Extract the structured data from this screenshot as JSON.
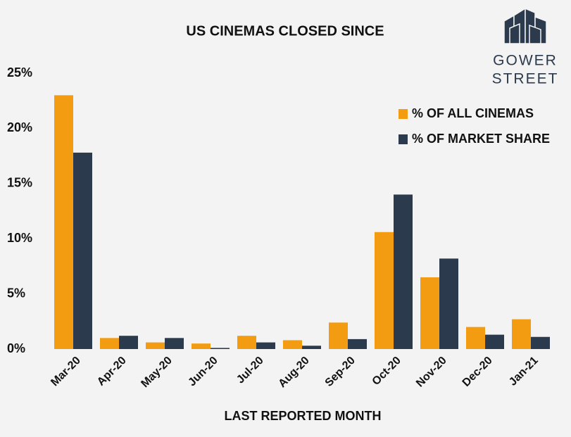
{
  "chart_data": {
    "type": "grouped_bar",
    "title": "US CINEMAS CLOSED SINCE",
    "x_label": "LAST REPORTED MONTH",
    "categories": [
      "Mar-20",
      "Apr-20",
      "May-20",
      "Jun-20",
      "Jul-20",
      "Aug-20",
      "Sep-20",
      "Oct-20",
      "Nov-20",
      "Dec-20",
      "Jan-21"
    ],
    "series": [
      {
        "name": "% OF ALL CINEMAS",
        "color": "#f39c12",
        "values": [
          23.0,
          1.0,
          0.6,
          0.5,
          1.2,
          0.8,
          2.4,
          10.6,
          6.5,
          2.0,
          2.7
        ]
      },
      {
        "name": "% OF MARKET SHARE",
        "color": "#2c3a4d",
        "values": [
          17.8,
          1.2,
          1.0,
          0.1,
          0.6,
          0.3,
          0.9,
          14.0,
          8.2,
          1.3,
          1.1
        ]
      }
    ],
    "ylim": [
      0,
      25
    ],
    "yticks": [
      {
        "value": 0,
        "label": "0%"
      },
      {
        "value": 5,
        "label": "5%"
      },
      {
        "value": 10,
        "label": "10%"
      },
      {
        "value": 15,
        "label": "15%"
      },
      {
        "value": 20,
        "label": "20%"
      },
      {
        "value": 25,
        "label": "25%"
      }
    ],
    "grid": false,
    "legend": "upper right"
  },
  "logo": {
    "lines": [
      "GOWER",
      "STREET"
    ]
  }
}
